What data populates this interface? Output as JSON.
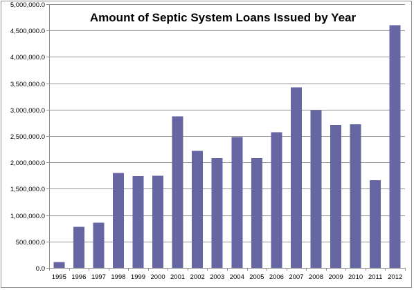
{
  "chart_data": {
    "type": "bar",
    "title": "Amount of Septic System Loans Issued by Year",
    "xlabel": "",
    "ylabel": "",
    "categories": [
      "1995",
      "1996",
      "1997",
      "1998",
      "1999",
      "2000",
      "2001",
      "2002",
      "2003",
      "2004",
      "2005",
      "2006",
      "2007",
      "2008",
      "2009",
      "2010",
      "2011",
      "2012"
    ],
    "values": [
      110000,
      780000,
      860000,
      1800000,
      1740000,
      1750000,
      2870000,
      2220000,
      2080000,
      2480000,
      2080000,
      2570000,
      3420000,
      2990000,
      2710000,
      2720000,
      1660000,
      4600000
    ],
    "ylim": [
      0,
      5000000
    ],
    "yticks": [
      0,
      500000,
      1000000,
      1500000,
      2000000,
      2500000,
      3000000,
      3500000,
      4000000,
      4500000,
      5000000
    ],
    "ytick_labels": [
      "0.0",
      "500,000.0",
      "1,000,000.0",
      "1,500,000.0",
      "2,000,000.0",
      "2,500,000.0",
      "3,000,000.0",
      "3,500,000.0",
      "4,000,000.0",
      "4,500,000.0",
      "5,000,000.0"
    ],
    "grid": true,
    "legend": "none",
    "bar_color": "#6666a3"
  }
}
